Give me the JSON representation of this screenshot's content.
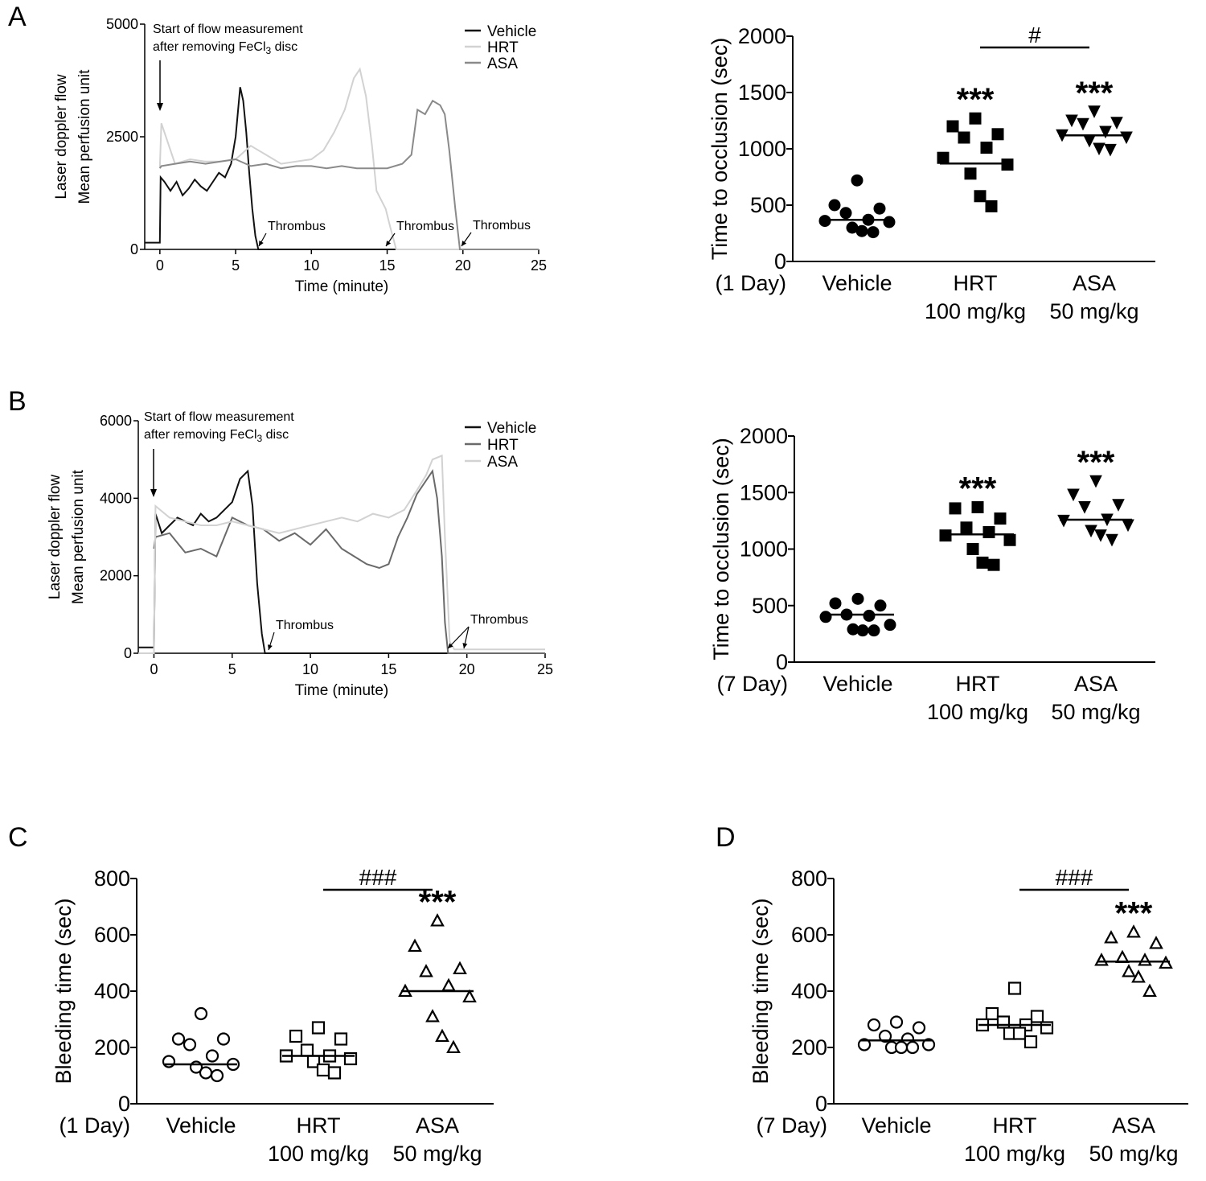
{
  "panel_labels": {
    "a": "A",
    "b": "B",
    "c": "C",
    "d": "D"
  },
  "colors": {
    "vehicle": "#111111",
    "hrt": "#d2d2d2",
    "asa": "#8a8a8a"
  },
  "chart_data": [
    {
      "id": "A-left",
      "type": "line",
      "xlabel": "Time (minute)",
      "ylabel": [
        "Laser doppler flow",
        "Mean perfusion unit"
      ],
      "xlim": [
        -1,
        25
      ],
      "ylim": [
        0,
        5000
      ],
      "xticks": [
        0,
        5,
        10,
        15,
        20,
        25
      ],
      "yticks": [
        0,
        2500,
        5000
      ],
      "annotation": "Start of flow measurement",
      "annotation_line2": "after removing FeCl",
      "annotation_sub": "3",
      "annotation_line2_end": " disc",
      "thrombus_label": "Thrombus",
      "thrombus_times": [
        6.5,
        15.6,
        19.8
      ],
      "series": [
        {
          "name": "Vehicle",
          "color": "#111111",
          "x": [
            -1,
            0,
            0.05,
            0.3,
            0.7,
            1.1,
            1.5,
            1.9,
            2.3,
            2.7,
            3.1,
            3.5,
            3.9,
            4.3,
            4.7,
            5.0,
            5.3,
            5.5,
            5.7,
            5.9,
            6.1,
            6.3,
            6.5,
            25
          ],
          "y": [
            150,
            150,
            1600,
            1500,
            1300,
            1500,
            1200,
            1350,
            1550,
            1400,
            1300,
            1500,
            1700,
            1600,
            1900,
            2500,
            3600,
            3300,
            2600,
            1700,
            900,
            300,
            0,
            0
          ]
        },
        {
          "name": "HRT",
          "color": "#d2d2d2",
          "x": [
            0,
            0.1,
            1,
            2,
            3,
            4,
            5,
            6,
            7,
            8,
            9,
            10,
            10.8,
            11.5,
            12.2,
            12.8,
            13.2,
            13.6,
            14.0,
            14.3,
            14.6,
            14.9,
            15.2,
            15.6,
            25
          ],
          "y": [
            1800,
            2800,
            1900,
            2000,
            1950,
            1950,
            2000,
            2300,
            2100,
            1900,
            1950,
            2000,
            2200,
            2600,
            3100,
            3800,
            4000,
            3400,
            2300,
            1300,
            1100,
            900,
            500,
            0,
            0
          ]
        },
        {
          "name": "ASA",
          "color": "#8a8a8a",
          "x": [
            0,
            0.1,
            1,
            2,
            3,
            4,
            5,
            6,
            7,
            8,
            9,
            10,
            11,
            12,
            13,
            14,
            15,
            16,
            16.6,
            17.0,
            17.5,
            18.0,
            18.5,
            18.8,
            19.1,
            19.5,
            19.8,
            25
          ],
          "y": [
            1800,
            1850,
            1900,
            1950,
            1900,
            1950,
            2000,
            1850,
            1900,
            1800,
            1850,
            1850,
            1800,
            1850,
            1800,
            1800,
            1800,
            1900,
            2100,
            3100,
            3000,
            3300,
            3200,
            3000,
            2200,
            900,
            0,
            0
          ]
        }
      ]
    },
    {
      "id": "A-right",
      "type": "scatter",
      "xlabel_prefix": "(1 Day)",
      "ylabel": "Time to occlusion (sec)",
      "ylim": [
        0,
        2000
      ],
      "yticks": [
        0,
        500,
        1000,
        1500,
        2000
      ],
      "categories": [
        "Vehicle",
        "HRT",
        "ASA"
      ],
      "dose_labels": [
        "",
        "100 mg/kg",
        "50 mg/kg"
      ],
      "markers": [
        "circle",
        "square",
        "triangle-down"
      ],
      "filled": true,
      "points": [
        [
          720,
          500,
          470,
          430,
          370,
          360,
          350,
          300,
          270,
          260
        ],
        [
          1270,
          1200,
          1130,
          1100,
          1010,
          920,
          860,
          780,
          580,
          490
        ],
        [
          1330,
          1250,
          1230,
          1220,
          1150,
          1120,
          1100,
          1070,
          1000,
          990
        ]
      ],
      "means": [
        370,
        870,
        1120
      ],
      "significance": [
        {
          "category": "HRT",
          "label": "***"
        },
        {
          "category": "ASA",
          "label": "***"
        }
      ],
      "bracket": {
        "from": "HRT",
        "to": "ASA",
        "label": "#"
      }
    },
    {
      "id": "B-left",
      "type": "line",
      "xlabel": "Time (minute)",
      "ylabel": [
        "Laser doppler flow",
        "Mean perfusion unit"
      ],
      "xlim": [
        -1,
        25
      ],
      "ylim": [
        0,
        6000
      ],
      "xticks": [
        0,
        5,
        10,
        15,
        20,
        25
      ],
      "yticks": [
        0,
        2000,
        4000,
        6000
      ],
      "annotation": "Start of flow measurement",
      "annotation_line2": "after removing FeCl",
      "annotation_sub": "3",
      "annotation_line2_end": " disc",
      "thrombus_label": "Thrombus",
      "thrombus_times": [
        7.1,
        18.9,
        19.6
      ],
      "series": [
        {
          "name": "Vehicle",
          "color": "#111111",
          "x": [
            -1,
            0,
            0.1,
            0.5,
            1,
            1.5,
            2,
            2.5,
            3,
            3.5,
            4,
            4.5,
            5,
            5.5,
            6,
            6.3,
            6.6,
            6.9,
            7.1,
            25
          ],
          "y": [
            150,
            150,
            3600,
            3100,
            3300,
            3500,
            3400,
            3300,
            3600,
            3400,
            3500,
            3700,
            3900,
            4500,
            4700,
            3800,
            1800,
            500,
            0,
            0
          ]
        },
        {
          "name": "HRT",
          "color": "#6a6a6a",
          "x": [
            0,
            0.1,
            1,
            2,
            3,
            4,
            5,
            6,
            7,
            8,
            9,
            10,
            11,
            12,
            12.8,
            13.6,
            14.4,
            15,
            15.6,
            16.2,
            16.8,
            17.3,
            17.8,
            18.1,
            18.4,
            18.6,
            18.8,
            25
          ],
          "y": [
            2700,
            3000,
            3100,
            2600,
            2700,
            2500,
            3500,
            3300,
            3200,
            2900,
            3100,
            2800,
            3200,
            2700,
            2500,
            2300,
            2200,
            2300,
            3000,
            3500,
            4100,
            4400,
            4700,
            4000,
            2500,
            800,
            0,
            0
          ]
        },
        {
          "name": "ASA",
          "color": "#d2d2d2",
          "x": [
            -1,
            0,
            0.1,
            1,
            2,
            3,
            4,
            5,
            6,
            7,
            8,
            9,
            10,
            11,
            12,
            13,
            14,
            15,
            16,
            16.8,
            17.4,
            17.8,
            18.4,
            18.6,
            18.9,
            19.2,
            20,
            25
          ],
          "y": [
            0,
            0,
            3800,
            3500,
            3400,
            3300,
            3300,
            3400,
            3300,
            3200,
            3100,
            3200,
            3300,
            3400,
            3500,
            3400,
            3600,
            3500,
            3700,
            4200,
            4600,
            5000,
            5100,
            3000,
            300,
            100,
            100,
            100
          ]
        }
      ]
    },
    {
      "id": "B-right",
      "type": "scatter",
      "xlabel_prefix": "(7 Day)",
      "ylabel": "Time to occlusion (sec)",
      "ylim": [
        0,
        2000
      ],
      "yticks": [
        0,
        500,
        1000,
        1500,
        2000
      ],
      "categories": [
        "Vehicle",
        "HRT",
        "ASA"
      ],
      "dose_labels": [
        "",
        "100 mg/kg",
        "50 mg/kg"
      ],
      "markers": [
        "circle",
        "square",
        "triangle-down"
      ],
      "filled": true,
      "points": [
        [
          560,
          520,
          500,
          420,
          410,
          400,
          330,
          290,
          280,
          280
        ],
        [
          1370,
          1360,
          1270,
          1190,
          1150,
          1120,
          1080,
          1000,
          880,
          860
        ],
        [
          1600,
          1480,
          1390,
          1370,
          1260,
          1250,
          1210,
          1160,
          1120,
          1080
        ]
      ],
      "means": [
        420,
        1130,
        1260
      ],
      "significance": [
        {
          "category": "HRT",
          "label": "***"
        },
        {
          "category": "ASA",
          "label": "***"
        }
      ]
    },
    {
      "id": "C",
      "type": "scatter",
      "xlabel_prefix": "(1 Day)",
      "ylabel": "Bleeding time (sec)",
      "ylim": [
        0,
        800
      ],
      "yticks": [
        0,
        200,
        400,
        600,
        800
      ],
      "categories": [
        "Vehicle",
        "HRT",
        "ASA"
      ],
      "dose_labels": [
        "",
        "100 mg/kg",
        "50 mg/kg"
      ],
      "markers": [
        "circle",
        "square",
        "triangle-up"
      ],
      "filled": false,
      "points": [
        [
          320,
          230,
          230,
          210,
          170,
          150,
          140,
          130,
          110,
          100
        ],
        [
          270,
          240,
          230,
          190,
          170,
          170,
          160,
          150,
          120,
          110
        ],
        [
          650,
          560,
          480,
          470,
          420,
          400,
          380,
          310,
          240,
          200
        ]
      ],
      "means": [
        140,
        170,
        400
      ],
      "significance": [
        {
          "category": "ASA",
          "label": "***"
        }
      ],
      "bracket": {
        "from": "HRT",
        "to": "ASA",
        "label": "###"
      }
    },
    {
      "id": "D",
      "type": "scatter",
      "xlabel_prefix": "(7 Day)",
      "ylabel": "Bleeding time (sec)",
      "ylim": [
        0,
        800
      ],
      "yticks": [
        0,
        200,
        400,
        600,
        800
      ],
      "categories": [
        "Vehicle",
        "HRT",
        "ASA"
      ],
      "dose_labels": [
        "",
        "100 mg/kg",
        "50 mg/kg"
      ],
      "markers": [
        "circle",
        "square",
        "triangle-up"
      ],
      "filled": false,
      "points": [
        [
          290,
          280,
          270,
          240,
          230,
          210,
          210,
          200,
          200,
          200
        ],
        [
          410,
          320,
          310,
          290,
          280,
          280,
          270,
          250,
          250,
          220
        ],
        [
          610,
          590,
          570,
          520,
          510,
          510,
          500,
          470,
          450,
          400
        ]
      ],
      "means": [
        225,
        280,
        505
      ],
      "significance": [
        {
          "category": "ASA",
          "label": "***"
        }
      ],
      "bracket": {
        "from": "HRT",
        "to": "ASA",
        "label": "###"
      }
    }
  ]
}
